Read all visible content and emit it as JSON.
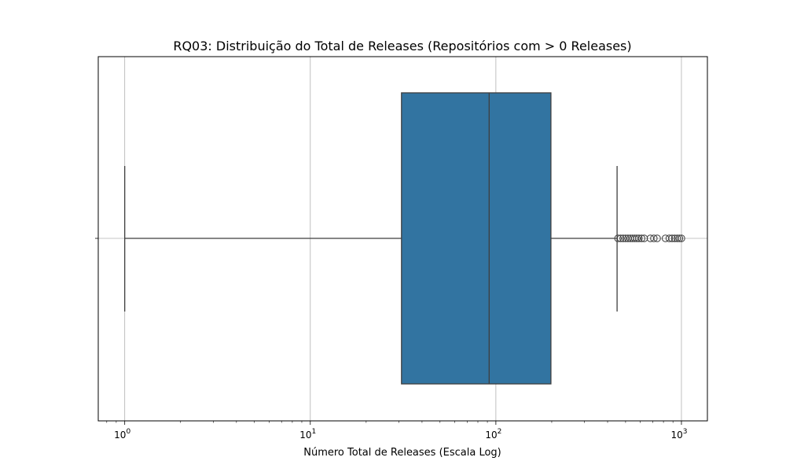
{
  "chart_data": {
    "type": "boxplot",
    "title": "RQ03: Distribuição do Total de Releases (Repositórios com > 0 Releases)",
    "xlabel": "Número Total de Releases (Escala Log)",
    "ylabel": "",
    "x_scale": "log",
    "xlim": [
      0.72,
      1380
    ],
    "x_ticks": [
      {
        "value": 1,
        "base": "10",
        "exp": "0"
      },
      {
        "value": 10,
        "base": "10",
        "exp": "1"
      },
      {
        "value": 100,
        "base": "10",
        "exp": "2"
      },
      {
        "value": 1000,
        "base": "10",
        "exp": "3"
      }
    ],
    "grid": true,
    "box": {
      "whisker_low": 1,
      "q1": 31,
      "median": 92,
      "q3": 198,
      "whisker_high": 450
    },
    "outliers": [
      455,
      470,
      485,
      500,
      515,
      530,
      545,
      560,
      575,
      590,
      610,
      630,
      680,
      710,
      740,
      820,
      860,
      890,
      920,
      950,
      975,
      1000
    ],
    "colors": {
      "box_fill": "#3274a1",
      "line": "#3f3f3f",
      "grid": "#b0b0b0"
    }
  }
}
